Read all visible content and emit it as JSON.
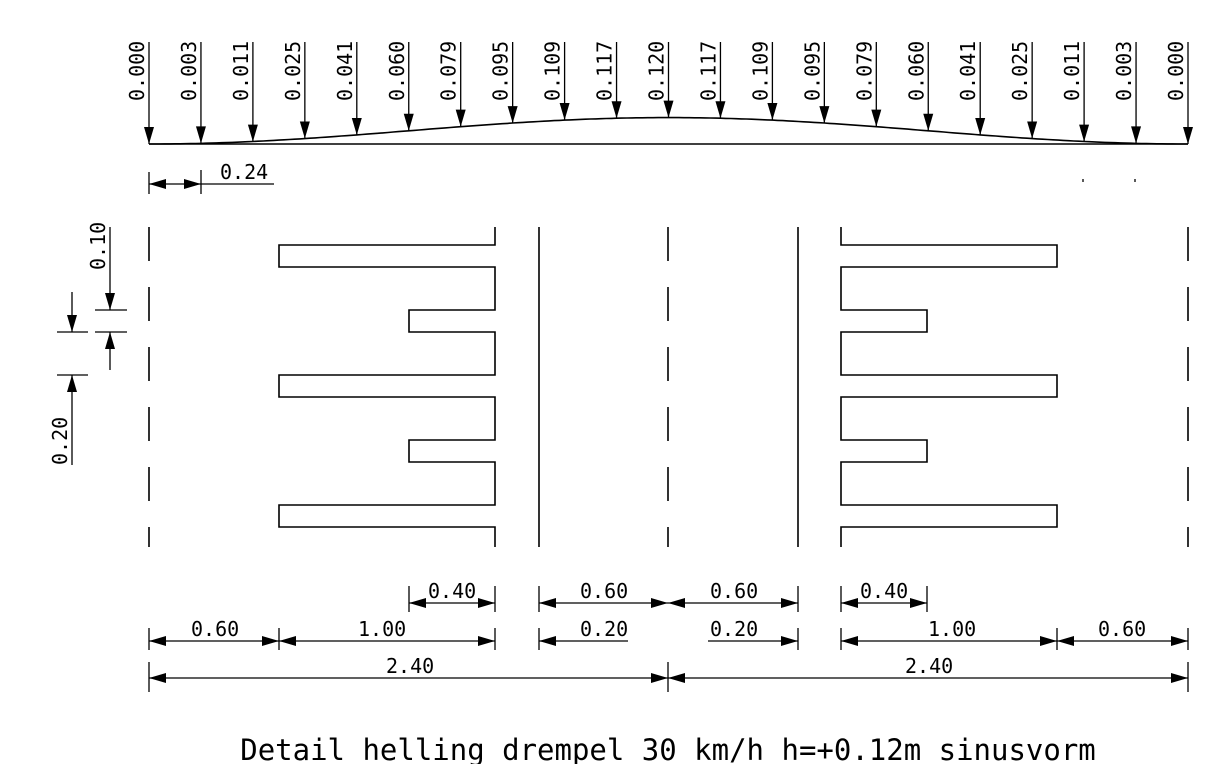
{
  "profile_heights": [
    "0.000",
    "0.003",
    "0.011",
    "0.025",
    "0.041",
    "0.060",
    "0.079",
    "0.095",
    "0.109",
    "0.117",
    "0.120",
    "0.117",
    "0.109",
    "0.095",
    "0.079",
    "0.060",
    "0.041",
    "0.025",
    "0.011",
    "0.003",
    "0.000"
  ],
  "dimensions": {
    "spacing_top": "0.24",
    "v_small": "0.10",
    "v_large": "0.20",
    "left_040": "0.40",
    "left_060_a": "0.60",
    "left_100": "1.00",
    "left_240": "2.40",
    "mid_060_left": "0.60",
    "mid_020_left": "0.20",
    "mid_060_right": "0.60",
    "mid_020_right": "0.20",
    "right_040": "0.40",
    "right_100": "1.00",
    "right_060": "0.60",
    "right_240": "2.40"
  },
  "title": "Detail helling drempel 30 km/h h=+0.12m sinusvorm"
}
